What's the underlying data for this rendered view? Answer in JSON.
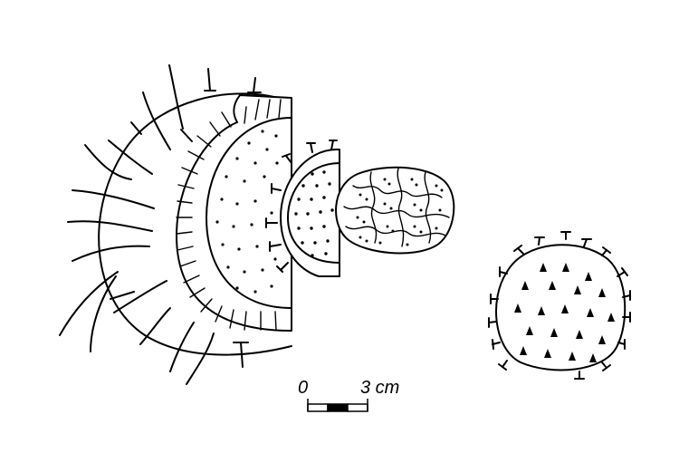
{
  "scale_bar": {
    "start_label": "0",
    "end_label": "3 cm"
  }
}
